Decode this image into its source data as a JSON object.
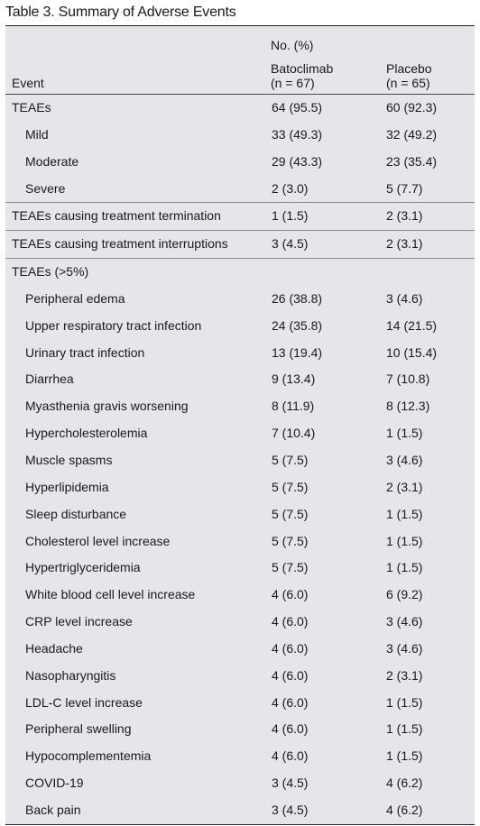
{
  "title": "Table 3. Summary of Adverse Events",
  "header": {
    "event": "Event",
    "group": "No. (%)",
    "bat_name": "Batoclimab",
    "bat_n": "(n = 67)",
    "pla_name": "Placebo",
    "pla_n": "(n = 65)"
  },
  "rows": [
    {
      "event": "TEAEs",
      "bat": "64 (95.5)",
      "pla": "60 (92.3)"
    },
    {
      "event": "Mild",
      "bat": "33 (49.3)",
      "pla": "32 (49.2)"
    },
    {
      "event": "Moderate",
      "bat": "29 (43.3)",
      "pla": "23 (35.4)"
    },
    {
      "event": "Severe",
      "bat": "2 (3.0)",
      "pla": "5 (7.7)"
    },
    {
      "event": "TEAEs causing treatment termination",
      "bat": "1 (1.5)",
      "pla": "2 (3.1)"
    },
    {
      "event": "TEAEs causing treatment interruptions",
      "bat": "3 (4.5)",
      "pla": "2 (3.1)"
    },
    {
      "event": "TEAEs (>5%)",
      "bat": "",
      "pla": ""
    },
    {
      "event": "Peripheral edema",
      "bat": "26 (38.8)",
      "pla": "3 (4.6)"
    },
    {
      "event": "Upper respiratory tract infection",
      "bat": "24 (35.8)",
      "pla": "14 (21.5)"
    },
    {
      "event": "Urinary tract infection",
      "bat": "13 (19.4)",
      "pla": "10 (15.4)"
    },
    {
      "event": "Diarrhea",
      "bat": "9 (13.4)",
      "pla": "7 (10.8)"
    },
    {
      "event": "Myasthenia gravis worsening",
      "bat": "8 (11.9)",
      "pla": "8 (12.3)"
    },
    {
      "event": "Hypercholesterolemia",
      "bat": "7 (10.4)",
      "pla": "1 (1.5)"
    },
    {
      "event": "Muscle spasms",
      "bat": "5 (7.5)",
      "pla": "3 (4.6)"
    },
    {
      "event": "Hyperlipidemia",
      "bat": "5 (7.5)",
      "pla": "2 (3.1)"
    },
    {
      "event": "Sleep disturbance",
      "bat": "5 (7.5)",
      "pla": "1 (1.5)"
    },
    {
      "event": "Cholesterol level increase",
      "bat": "5 (7.5)",
      "pla": "1 (1.5)"
    },
    {
      "event": "Hypertriglyceridemia",
      "bat": "5 (7.5)",
      "pla": "1 (1.5)"
    },
    {
      "event": "White blood cell level increase",
      "bat": "4 (6.0)",
      "pla": "6 (9.2)"
    },
    {
      "event": "CRP level increase",
      "bat": "4 (6.0)",
      "pla": "3 (4.6)"
    },
    {
      "event": "Headache",
      "bat": "4 (6.0)",
      "pla": "3 (4.6)"
    },
    {
      "event": "Nasopharyngitis",
      "bat": "4 (6.0)",
      "pla": "2 (3.1)"
    },
    {
      "event": "LDL-C level increase",
      "bat": "4 (6.0)",
      "pla": "1 (1.5)"
    },
    {
      "event": "Peripheral swelling",
      "bat": "4 (6.0)",
      "pla": "1 (1.5)"
    },
    {
      "event": "Hypocomplementemia",
      "bat": "4 (6.0)",
      "pla": "1 (1.5)"
    },
    {
      "event": "COVID-19",
      "bat": "3 (4.5)",
      "pla": "4 (6.2)"
    },
    {
      "event": "Back pain",
      "bat": "3 (4.5)",
      "pla": "4 (6.2)"
    }
  ]
}
